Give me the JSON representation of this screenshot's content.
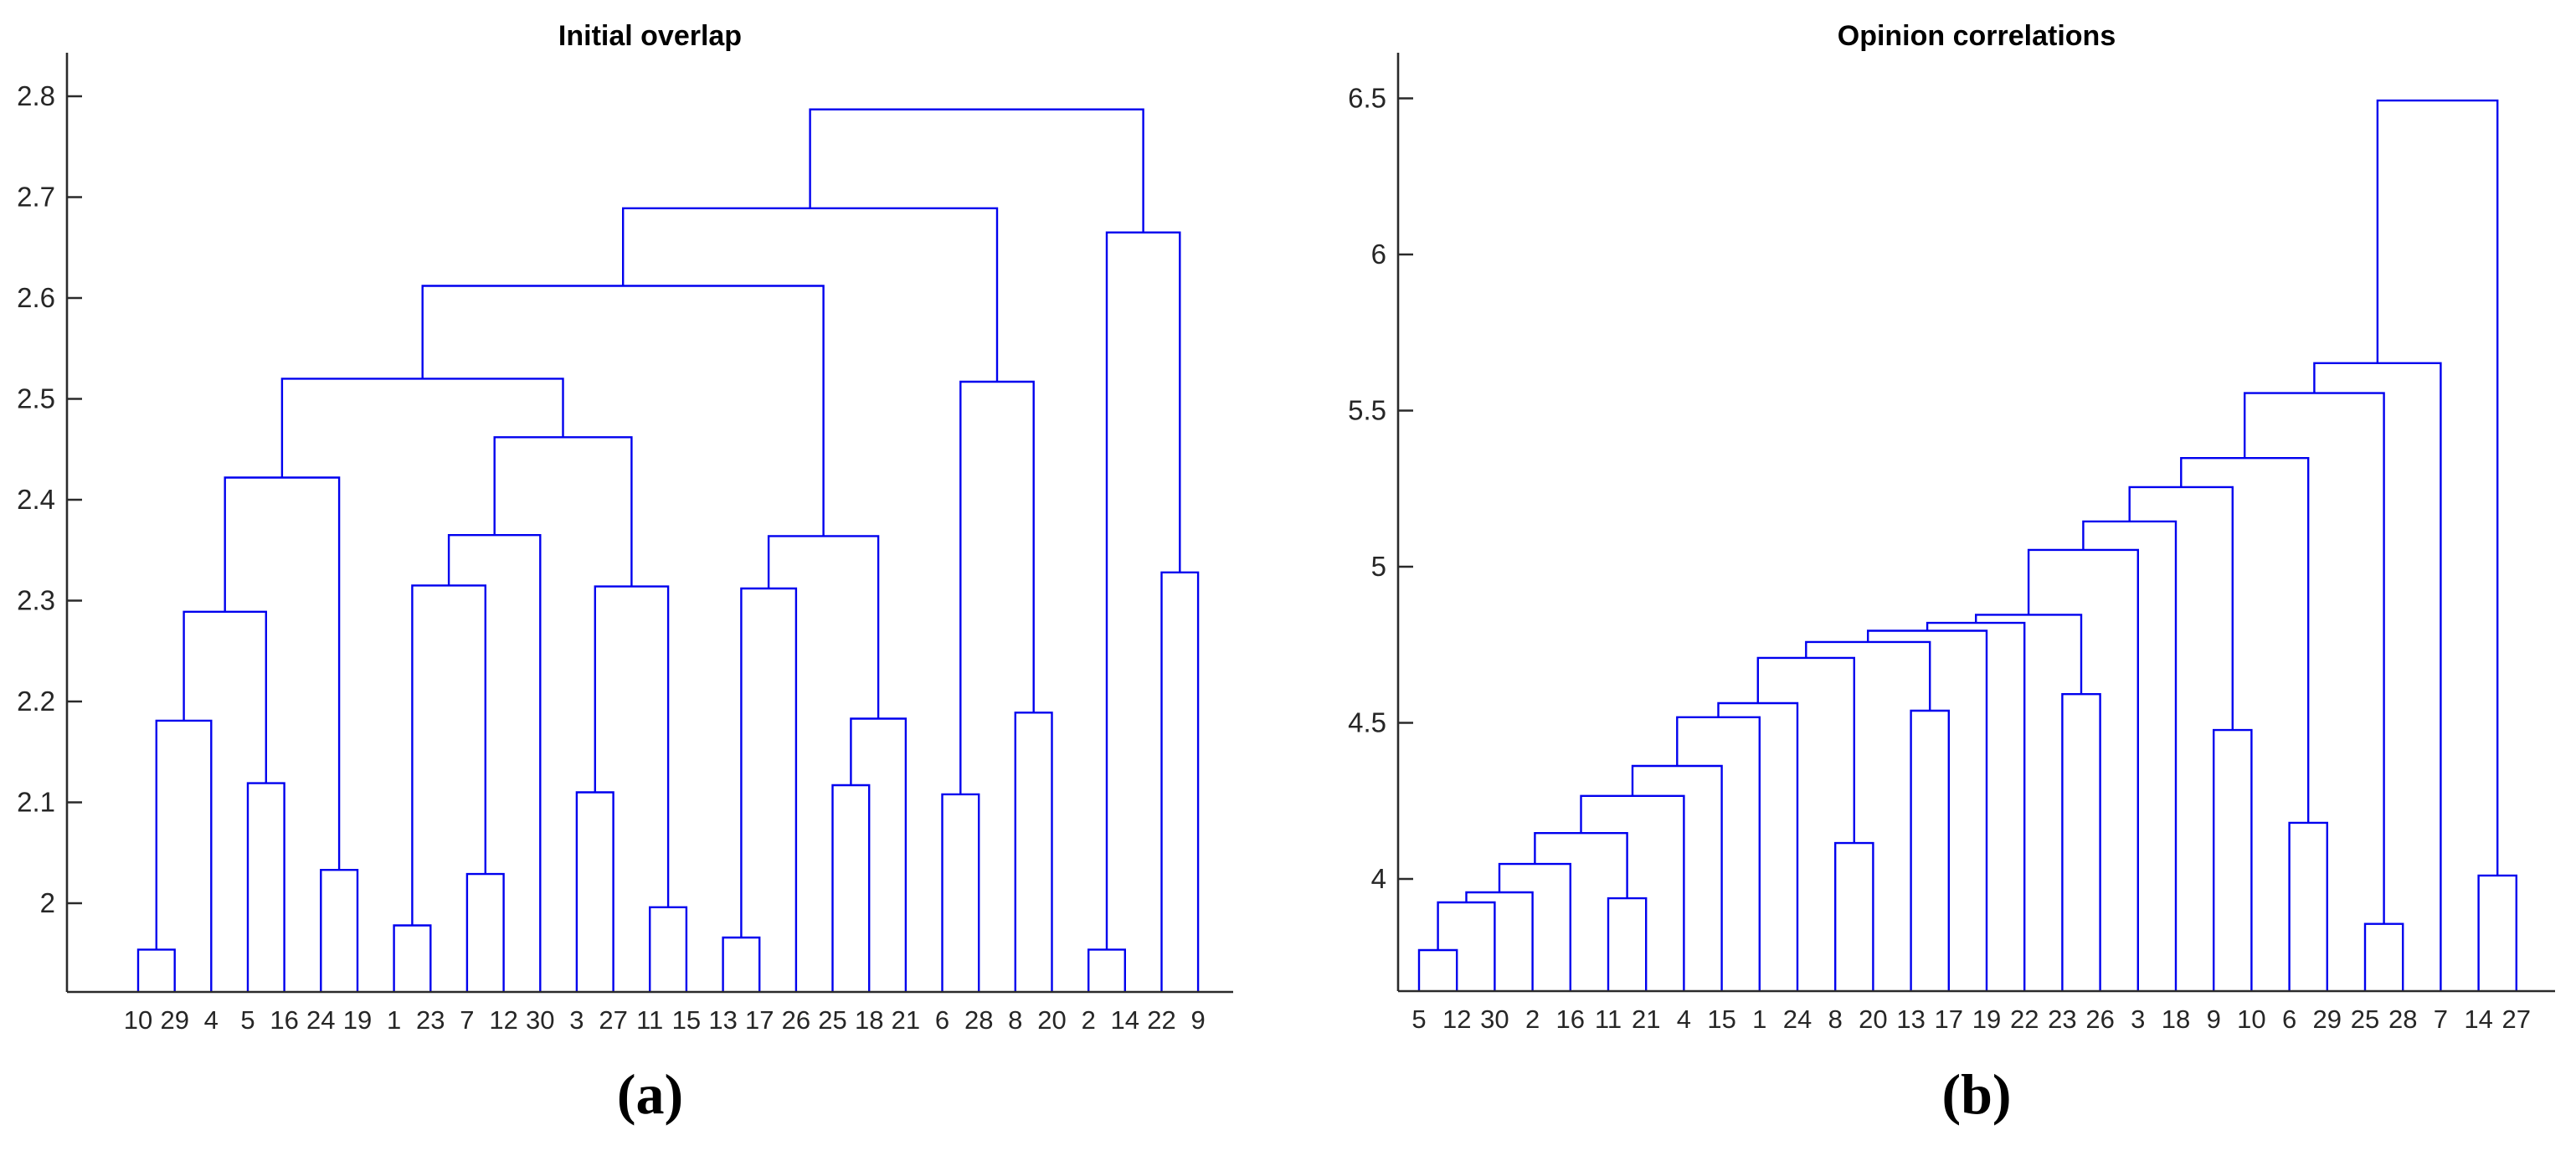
{
  "figure": {
    "type": "two-panel hierarchical clustering dendrograms (MATLAB style)",
    "line_color": "#0000ee",
    "axis_color": "#2a2a2a",
    "background": "#ffffff"
  },
  "chart_data": [
    {
      "type": "dendrogram",
      "title": "Initial overlap",
      "caption": "(a)",
      "legend": "none",
      "grid": false,
      "xlabel": "",
      "ylabel": "",
      "ylim": [
        1.912,
        2.843
      ],
      "yticks": [
        2,
        2.1,
        2.2,
        2.3,
        2.4,
        2.5,
        2.6,
        2.7,
        2.8
      ],
      "ytick_labels": [
        "2",
        "2.1",
        "2.2",
        "2.3",
        "2.4",
        "2.5",
        "2.6",
        "2.7",
        "2.8"
      ],
      "leaves": [
        "10",
        "29",
        "4",
        "5",
        "16",
        "24",
        "19",
        "1",
        "23",
        "7",
        "12",
        "30",
        "3",
        "27",
        "11",
        "15",
        "13",
        "17",
        "26",
        "25",
        "18",
        "21",
        "6",
        "28",
        "8",
        "20",
        "2",
        "14",
        "22",
        "9"
      ],
      "merges": [
        [
          0,
          1,
          1.954
        ],
        [
          "M0",
          2,
          2.181
        ],
        [
          3,
          4,
          2.119
        ],
        [
          "M1",
          "M2",
          2.289
        ],
        [
          5,
          6,
          2.033
        ],
        [
          "M3",
          "M4",
          2.422
        ],
        [
          7,
          8,
          1.978
        ],
        [
          9,
          10,
          2.029
        ],
        [
          "M6",
          "M7",
          2.315
        ],
        [
          "M8",
          11,
          2.365
        ],
        [
          12,
          13,
          2.11
        ],
        [
          14,
          15,
          1.996
        ],
        [
          "M10",
          "M11",
          2.314
        ],
        [
          "M9",
          "M12",
          2.462
        ],
        [
          "M5",
          "M13",
          2.52
        ],
        [
          16,
          17,
          1.966
        ],
        [
          "M15",
          18,
          2.312
        ],
        [
          19,
          20,
          2.117
        ],
        [
          "M17",
          21,
          2.183
        ],
        [
          "M16",
          "M18",
          2.364
        ],
        [
          "M14",
          "M19",
          2.612
        ],
        [
          22,
          23,
          2.108
        ],
        [
          24,
          25,
          2.189
        ],
        [
          "M21",
          "M22",
          2.517
        ],
        [
          "M20",
          "M23",
          2.689
        ],
        [
          26,
          27,
          1.954
        ],
        [
          28,
          29,
          2.328
        ],
        [
          "M25",
          "M26",
          2.665
        ],
        [
          "M24",
          "M27",
          2.787
        ]
      ]
    },
    {
      "type": "dendrogram",
      "title": "Opinion correlations",
      "caption": "(b)",
      "legend": "none",
      "grid": false,
      "xlabel": "",
      "ylabel": "",
      "ylim": [
        3.641,
        6.646
      ],
      "yticks": [
        4,
        4.5,
        5,
        5.5,
        6,
        6.5
      ],
      "ytick_labels": [
        "4",
        "4.5",
        "5",
        "5.5",
        "6",
        "6.5"
      ],
      "leaves": [
        "5",
        "12",
        "30",
        "2",
        "16",
        "11",
        "21",
        "4",
        "15",
        "1",
        "24",
        "8",
        "20",
        "13",
        "17",
        "19",
        "22",
        "23",
        "26",
        "3",
        "18",
        "9",
        "10",
        "6",
        "29",
        "25",
        "28",
        "7",
        "14",
        "27"
      ],
      "merges": [
        [
          0,
          1,
          3.772
        ],
        [
          "M0",
          2,
          3.925
        ],
        [
          "M1",
          3,
          3.957
        ],
        [
          "M2",
          4,
          4.048
        ],
        [
          5,
          6,
          3.938
        ],
        [
          "M3",
          "M4",
          4.147
        ],
        [
          "M5",
          7,
          4.266
        ],
        [
          "M6",
          8,
          4.362
        ],
        [
          "M7",
          9,
          4.518
        ],
        [
          "M8",
          10,
          4.563
        ],
        [
          11,
          12,
          4.115
        ],
        [
          "M9",
          "M10",
          4.708
        ],
        [
          13,
          14,
          4.539
        ],
        [
          "M11",
          "M12",
          4.759
        ],
        [
          "M13",
          15,
          4.795
        ],
        [
          "M14",
          16,
          4.82
        ],
        [
          17,
          18,
          4.592
        ],
        [
          "M15",
          "M16",
          4.846
        ],
        [
          "M17",
          19,
          5.054
        ],
        [
          "M18",
          20,
          5.145
        ],
        [
          21,
          22,
          4.477
        ],
        [
          "M19",
          "M20",
          5.255
        ],
        [
          23,
          24,
          4.18
        ],
        [
          "M21",
          "M22",
          5.348
        ],
        [
          25,
          26,
          3.856
        ],
        [
          "M23",
          "M24",
          5.556
        ],
        [
          "M25",
          27,
          5.652
        ],
        [
          28,
          29,
          4.011
        ],
        [
          "M26",
          "M27",
          6.493
        ]
      ]
    }
  ]
}
